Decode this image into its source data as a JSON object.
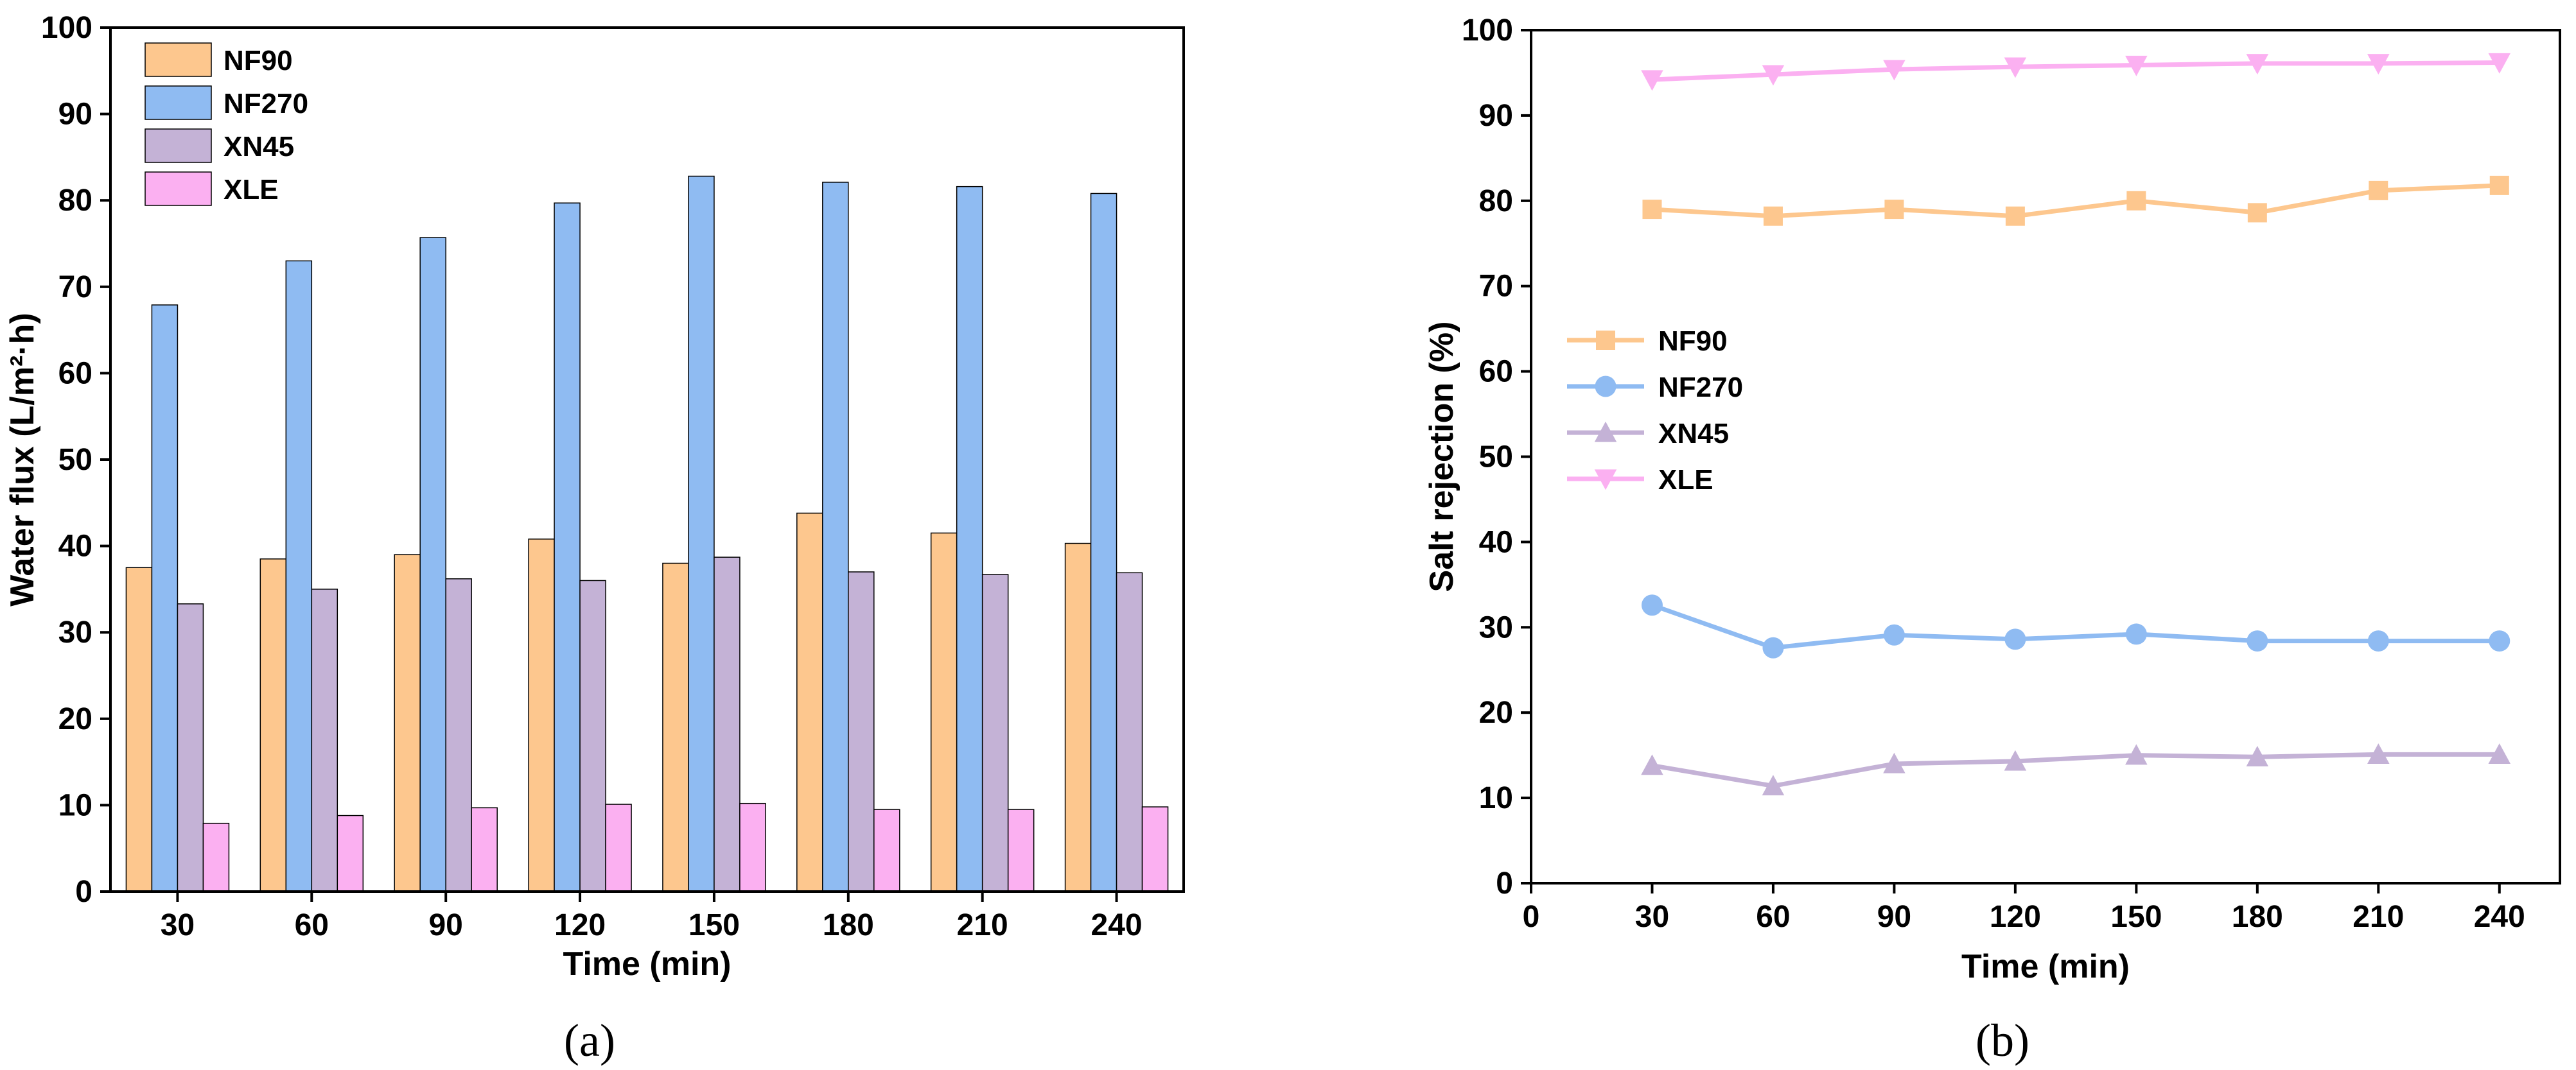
{
  "colors": {
    "NF90": "#fdc78e",
    "NF270": "#8fbbf2",
    "XN45": "#c4b2d6",
    "XLE": "#fbb0f1",
    "axis": "#000000",
    "background": "#ffffff"
  },
  "chart_data": [
    {
      "id": "a",
      "type": "bar",
      "caption": "(a)",
      "title": "",
      "xlabel": "Time (min)",
      "ylabel": "Water flux (L/m²·h)",
      "categories": [
        "30",
        "60",
        "90",
        "120",
        "150",
        "180",
        "210",
        "240"
      ],
      "ylim": [
        0,
        100
      ],
      "yticks": [
        0,
        10,
        20,
        30,
        40,
        50,
        60,
        70,
        80,
        90,
        100
      ],
      "ytick_labels": [
        "0",
        "10",
        "20",
        "30",
        "40",
        "50",
        "60",
        "70",
        "80",
        "90",
        "100"
      ],
      "legend_position": "top-left",
      "grid": false,
      "series": [
        {
          "name": "NF90",
          "color": "#fdc78e",
          "values": [
            37.5,
            38.5,
            39.0,
            40.8,
            38.0,
            43.8,
            41.5,
            40.3
          ]
        },
        {
          "name": "NF270",
          "color": "#8fbbf2",
          "values": [
            67.9,
            73.0,
            75.7,
            79.7,
            82.8,
            82.1,
            81.6,
            80.8
          ]
        },
        {
          "name": "XN45",
          "color": "#c4b2d6",
          "values": [
            33.3,
            35.0,
            36.2,
            36.0,
            38.7,
            37.0,
            36.7,
            36.9
          ]
        },
        {
          "name": "XLE",
          "color": "#fbb0f1",
          "values": [
            7.9,
            8.8,
            9.7,
            10.1,
            10.2,
            9.5,
            9.5,
            9.8
          ]
        }
      ]
    },
    {
      "id": "b",
      "type": "line",
      "caption": "(b)",
      "title": "",
      "xlabel": "Time (min)",
      "ylabel": "Salt rejection (%)",
      "x": [
        30,
        60,
        90,
        120,
        150,
        180,
        210,
        240
      ],
      "xlim": [
        0,
        255
      ],
      "xticks": [
        0,
        30,
        60,
        90,
        120,
        150,
        180,
        210,
        240
      ],
      "xtick_labels": [
        "0",
        "30",
        "60",
        "90",
        "120",
        "150",
        "180",
        "210",
        "240"
      ],
      "ylim": [
        0,
        100
      ],
      "yticks": [
        0,
        10,
        20,
        30,
        40,
        50,
        60,
        70,
        80,
        90,
        100
      ],
      "ytick_labels": [
        "0",
        "10",
        "20",
        "30",
        "40",
        "50",
        "60",
        "70",
        "80",
        "90",
        "100"
      ],
      "legend_position": "center-left",
      "grid": false,
      "series": [
        {
          "name": "NF90",
          "marker": "square",
          "color": "#fdc78e",
          "values": [
            79.0,
            78.2,
            79.0,
            78.2,
            80.0,
            78.6,
            81.2,
            81.8
          ]
        },
        {
          "name": "NF270",
          "marker": "circle",
          "color": "#8fbbf2",
          "values": [
            32.6,
            27.6,
            29.1,
            28.6,
            29.2,
            28.4,
            28.4,
            28.4
          ]
        },
        {
          "name": "XN45",
          "marker": "triangle-up",
          "color": "#c4b2d6",
          "values": [
            13.8,
            11.4,
            14.0,
            14.3,
            15.0,
            14.8,
            15.1,
            15.1
          ]
        },
        {
          "name": "XLE",
          "marker": "triangle-down",
          "color": "#fbb0f1",
          "values": [
            94.2,
            94.8,
            95.4,
            95.7,
            95.9,
            96.1,
            96.1,
            96.2
          ]
        }
      ]
    }
  ]
}
